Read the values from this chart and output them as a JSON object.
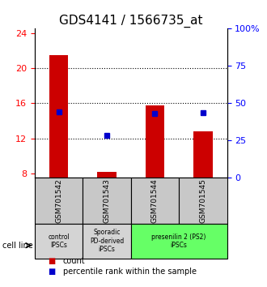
{
  "title": "GDS4141 / 1566735_at",
  "samples": [
    "GSM701542",
    "GSM701543",
    "GSM701544",
    "GSM701545"
  ],
  "counts": [
    21.5,
    8.2,
    15.8,
    12.8
  ],
  "percentile_ranks": [
    44.0,
    28.5,
    43.0,
    43.5
  ],
  "ylim_left": [
    7.5,
    24.5
  ],
  "ylim_right": [
    0,
    100
  ],
  "yticks_left": [
    8,
    12,
    16,
    20,
    24
  ],
  "yticks_right": [
    0,
    25,
    50,
    75,
    100
  ],
  "ytick_labels_right": [
    "0",
    "25",
    "50",
    "75",
    "100%"
  ],
  "bar_color": "#cc0000",
  "dot_color": "#0000cc",
  "bar_bottom": 7.5,
  "group_labels": [
    "control\nIPSCs",
    "Sporadic\nPD-derived\niPSCs",
    "presenilin 2 (PS2)\niPSCs"
  ],
  "group_ranges": [
    [
      0,
      1
    ],
    [
      1,
      2
    ],
    [
      2,
      4
    ]
  ],
  "group_colors": [
    "#d4d4d4",
    "#d4d4d4",
    "#66ff66"
  ],
  "sample_box_color": "#c8c8c8",
  "legend_count_color": "#cc0000",
  "legend_dot_color": "#0000cc",
  "gridline_color": "#000000",
  "title_fontsize": 11,
  "axis_fontsize": 9,
  "tick_fontsize": 8,
  "bar_width": 0.4
}
